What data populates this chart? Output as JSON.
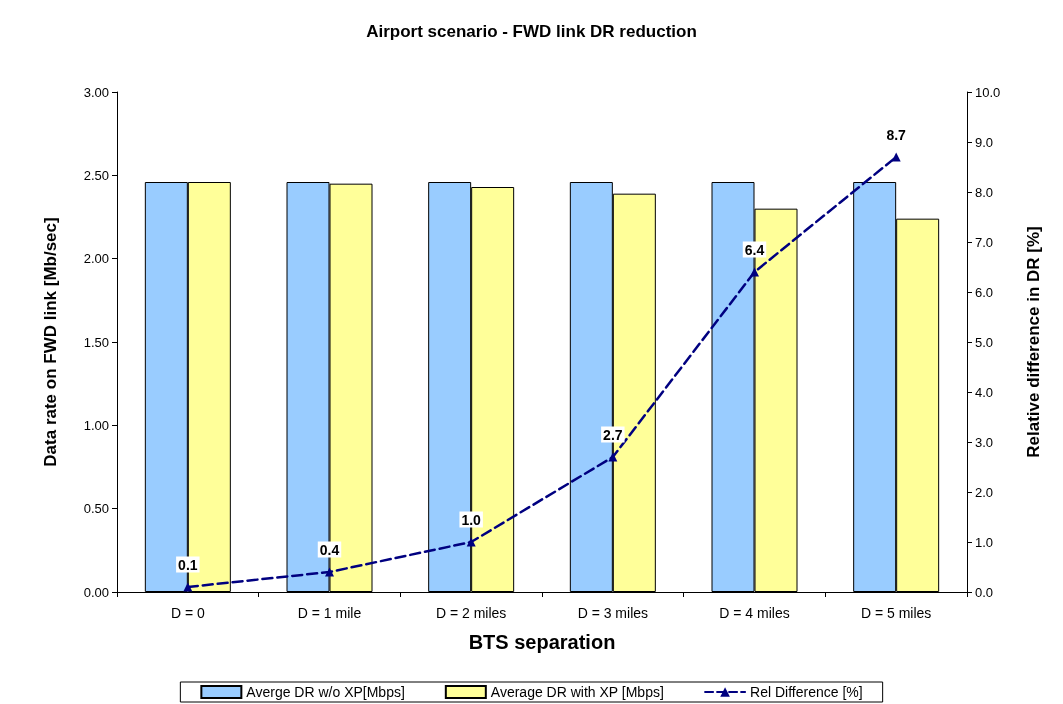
{
  "chart_data": {
    "type": "bar",
    "title": "Airport scenario - FWD link DR reduction",
    "xlabel": "BTS separation",
    "ylabel": "Data rate on FWD link [Mb/sec]",
    "y2label": "Relative difference in DR [%]",
    "categories": [
      "D = 0",
      "D = 1 mile",
      "D = 2 miles",
      "D = 3 miles",
      "D = 4 miles",
      "D = 5 miles"
    ],
    "series": [
      {
        "name": "Averge DR w/o XP[Mbps]",
        "color": "#99ccff",
        "values": [
          2.46,
          2.46,
          2.46,
          2.46,
          2.46,
          2.46
        ]
      },
      {
        "name": "Average DR with XP [Mbps]",
        "color": "#ffff99",
        "values": [
          2.46,
          2.45,
          2.43,
          2.39,
          2.3,
          2.24
        ]
      },
      {
        "name": "Rel Difference [%]",
        "type": "line",
        "axis": "y2",
        "color": "#000080",
        "marker": "triangle",
        "line_style": "dashed",
        "value_labels": [
          "0.1",
          "0.4",
          "1.0",
          "2.7",
          "6.4",
          "8.7"
        ],
        "values": [
          0.1,
          0.4,
          1.0,
          2.7,
          6.4,
          8.7
        ]
      }
    ],
    "ylim": [
      0,
      3
    ],
    "yticks": [
      {
        "value": 0,
        "label": "0.00"
      },
      {
        "value": 0.5,
        "label": "0.50"
      },
      {
        "value": 1,
        "label": "1.00"
      },
      {
        "value": 1.5,
        "label": "1.50"
      },
      {
        "value": 2,
        "label": "2.00"
      },
      {
        "value": 2.5,
        "label": "2.50"
      },
      {
        "value": 3,
        "label": "3.00"
      }
    ],
    "y2lim": [
      0,
      10
    ],
    "y2ticks": [
      {
        "value": 0,
        "label": "0.0"
      },
      {
        "value": 1,
        "label": "1.0"
      },
      {
        "value": 2,
        "label": "2.0"
      },
      {
        "value": 3,
        "label": "3.0"
      },
      {
        "value": 4,
        "label": "4.0"
      },
      {
        "value": 5,
        "label": "5.0"
      },
      {
        "value": 6,
        "label": "6.0"
      },
      {
        "value": 7,
        "label": "7.0"
      },
      {
        "value": 8,
        "label": "8.0"
      },
      {
        "value": 9,
        "label": "9.0"
      },
      {
        "value": 10,
        "label": "10.0"
      }
    ],
    "grid": false,
    "legend": "bottom"
  }
}
